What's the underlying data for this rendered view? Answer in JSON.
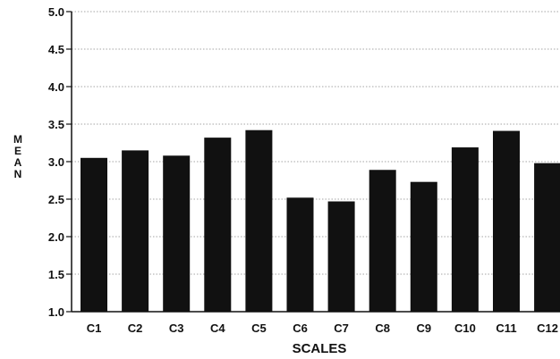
{
  "chart_data": {
    "type": "bar",
    "categories": [
      "C1",
      "C2",
      "C3",
      "C4",
      "C5",
      "C6",
      "C7",
      "C8",
      "C9",
      "C10",
      "C11",
      "C12"
    ],
    "values": [
      3.05,
      3.15,
      3.08,
      3.32,
      3.42,
      2.52,
      2.47,
      2.89,
      2.73,
      3.19,
      3.41,
      2.98
    ],
    "title": "",
    "xlabel": "SCALES",
    "ylabel": "MEAN",
    "ylim": [
      1.0,
      5.0
    ],
    "yticks": [
      "1.0",
      "1.5",
      "2.0",
      "2.5",
      "3.0",
      "3.5",
      "4.0",
      "4.5",
      "5.0"
    ],
    "grid": "horizontal dotted",
    "bar_color": "#111111"
  }
}
